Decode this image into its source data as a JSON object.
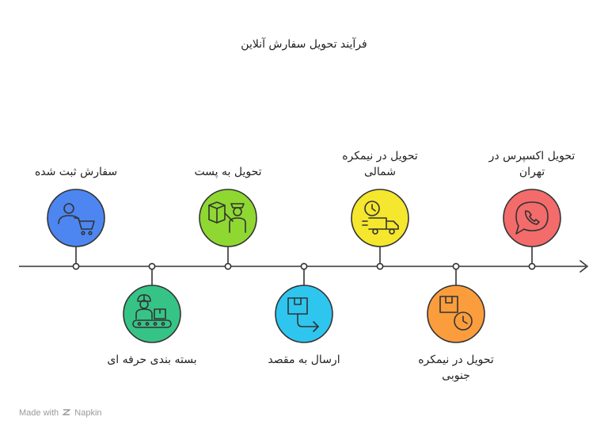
{
  "title": "فرآیند تحویل سفارش آنلاین",
  "steps": [
    {
      "label_lines": [
        "سفارش ثبت شده"
      ],
      "icon": "user-cart-icon",
      "color": "#4d86f0"
    },
    {
      "label_lines": [
        "بسته بندی حرفه ای"
      ],
      "icon": "packer-conveyor-icon",
      "color": "#36c486"
    },
    {
      "label_lines": [
        "تحویل به پست"
      ],
      "icon": "courier-box-icon",
      "color": "#8fd832"
    },
    {
      "label_lines": [
        "ارسال به مقصد"
      ],
      "icon": "box-send-arrow-icon",
      "color": "#2ec6ef"
    },
    {
      "label_lines": [
        "تحویل در نیمکره",
        "شمالی"
      ],
      "icon": "clock-truck-icon",
      "color": "#f5e62e"
    },
    {
      "label_lines": [
        "تحویل در نیمکره",
        "جنوبی"
      ],
      "icon": "box-clock-icon",
      "color": "#fb9d3c"
    },
    {
      "label_lines": [
        "تحویل اکسپرس در",
        "تهران"
      ],
      "icon": "phone-chat-icon",
      "color": "#f36b6b"
    }
  ],
  "footer": {
    "made_with": "Made with",
    "brand": "Napkin"
  }
}
